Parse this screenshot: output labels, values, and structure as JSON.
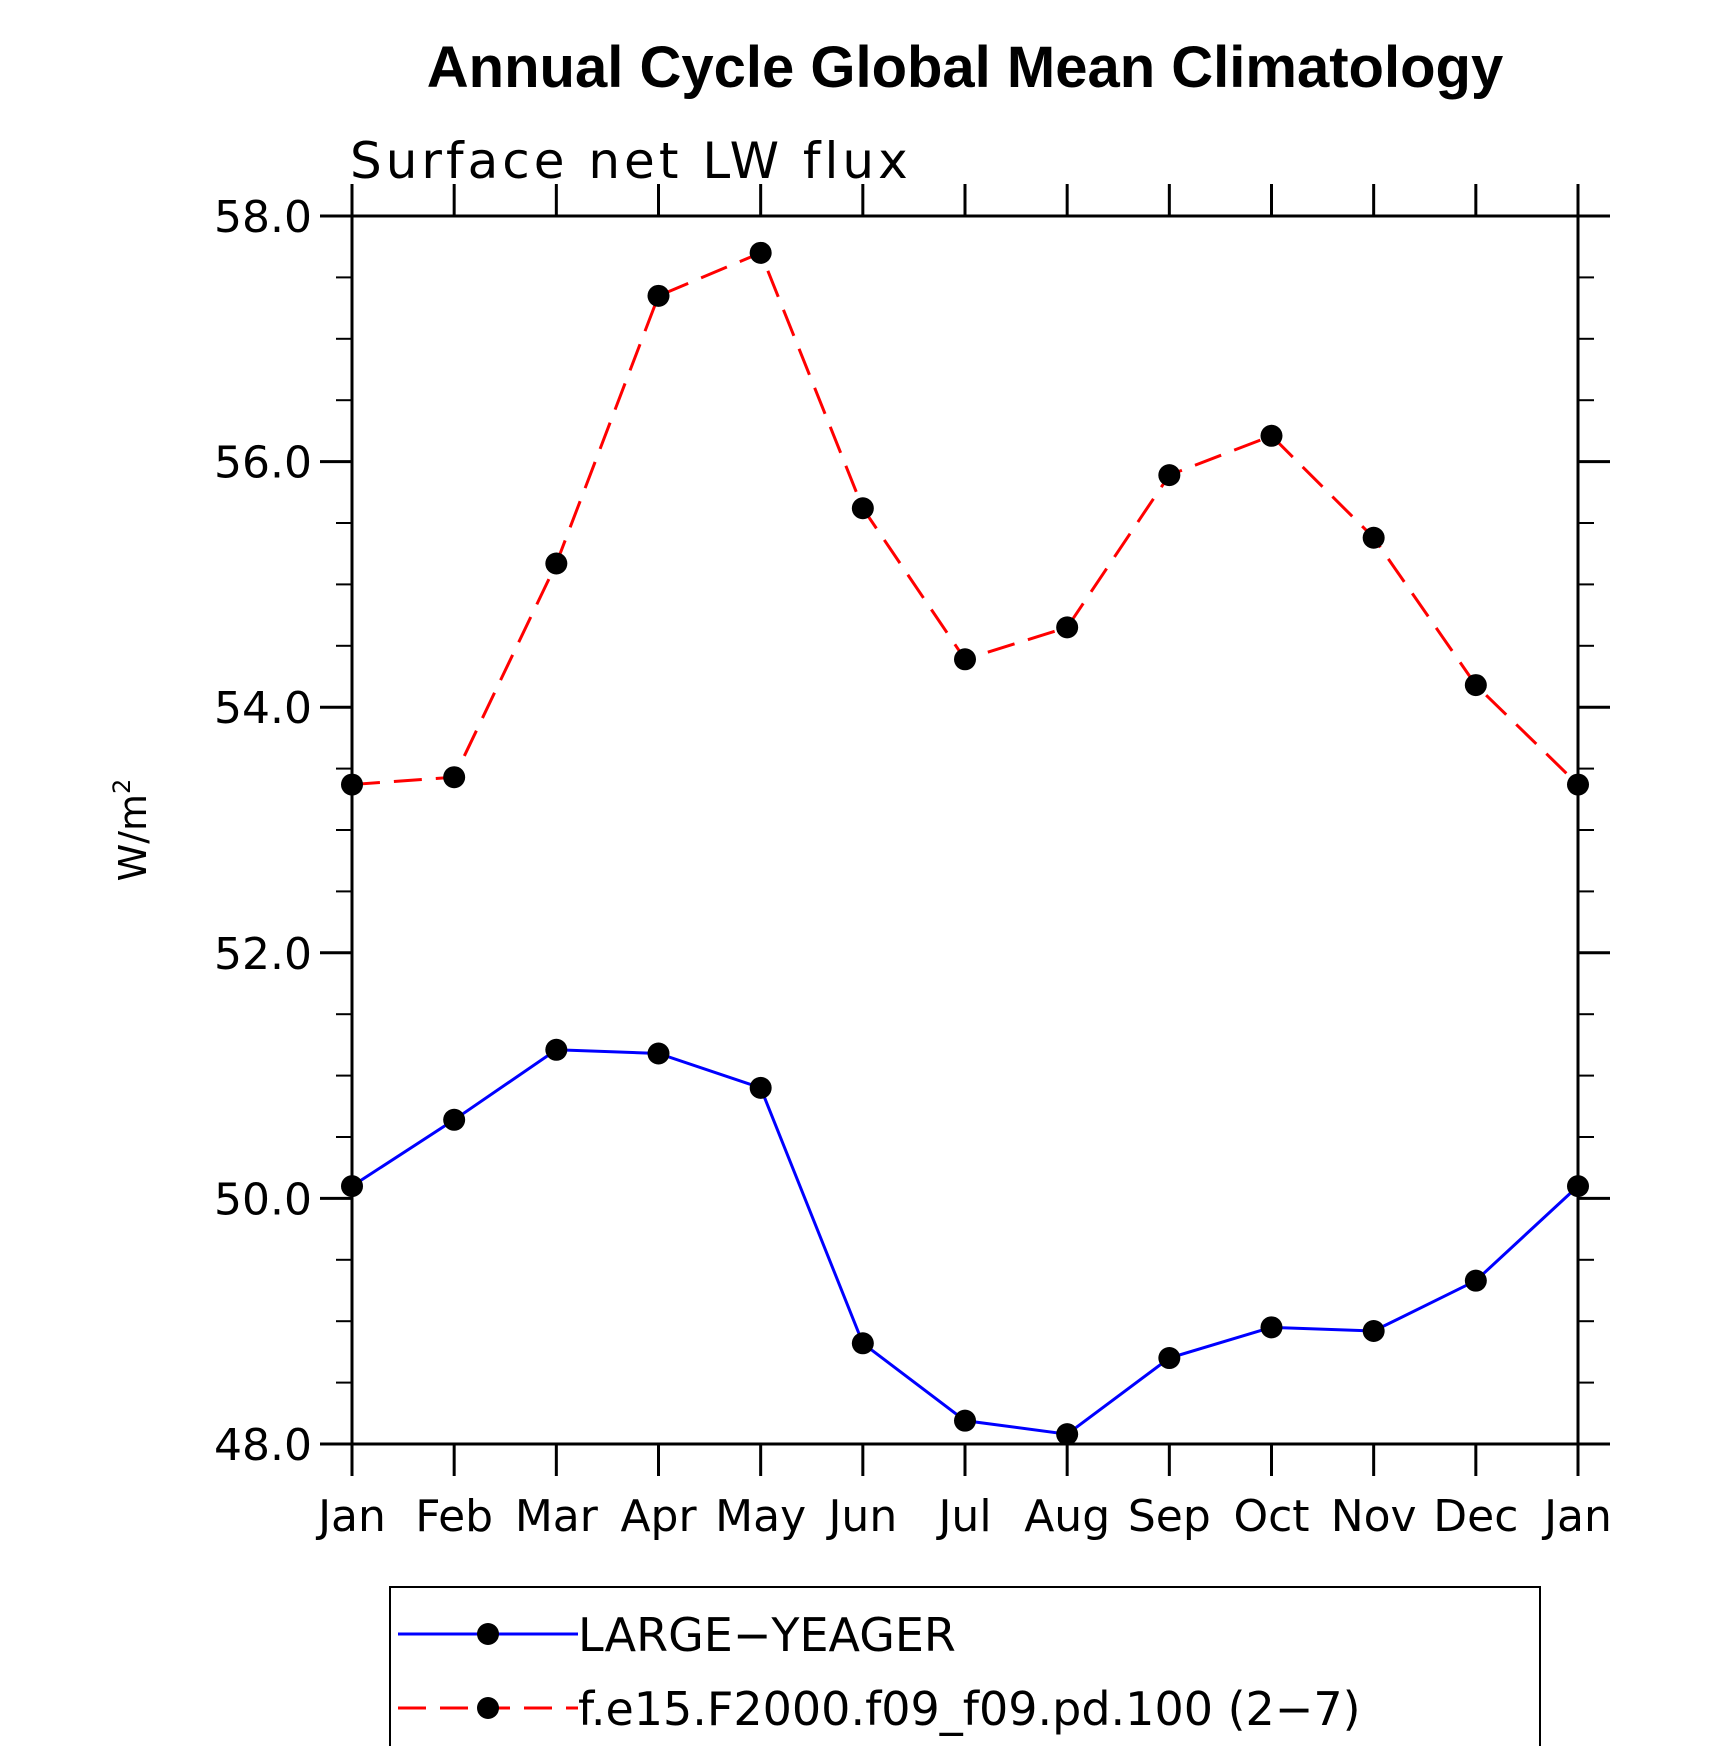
{
  "chart_data": {
    "type": "line",
    "title": "Annual Cycle Global Mean Climatology",
    "subtitle": "Surface net LW flux",
    "xlabel": "",
    "ylabel": "W/m",
    "ylabel_superscript": "2",
    "ylim": [
      48.0,
      58.0
    ],
    "yticks": [
      "48.0",
      "50.0",
      "52.0",
      "54.0",
      "56.0",
      "58.0"
    ],
    "y_minor_step": 0.5,
    "categories": [
      "Jan",
      "Feb",
      "Mar",
      "Apr",
      "May",
      "Jun",
      "Jul",
      "Aug",
      "Sep",
      "Oct",
      "Nov",
      "Dec",
      "Jan"
    ],
    "series": [
      {
        "name": "LARGE−YEAGER",
        "color": "#0000ff",
        "dash": "solid",
        "values": [
          50.1,
          50.64,
          51.21,
          51.18,
          50.9,
          48.82,
          48.19,
          48.08,
          48.7,
          48.95,
          48.92,
          49.33,
          50.1
        ]
      },
      {
        "name": "f.e15.F2000.f09_f09.pd.100 (2−7)",
        "color": "#ff0000",
        "dash": "dashed",
        "values": [
          53.37,
          53.43,
          55.17,
          57.35,
          57.7,
          55.62,
          54.39,
          54.65,
          55.89,
          56.21,
          55.38,
          54.18,
          53.37
        ]
      }
    ],
    "legend_position": "bottom"
  }
}
